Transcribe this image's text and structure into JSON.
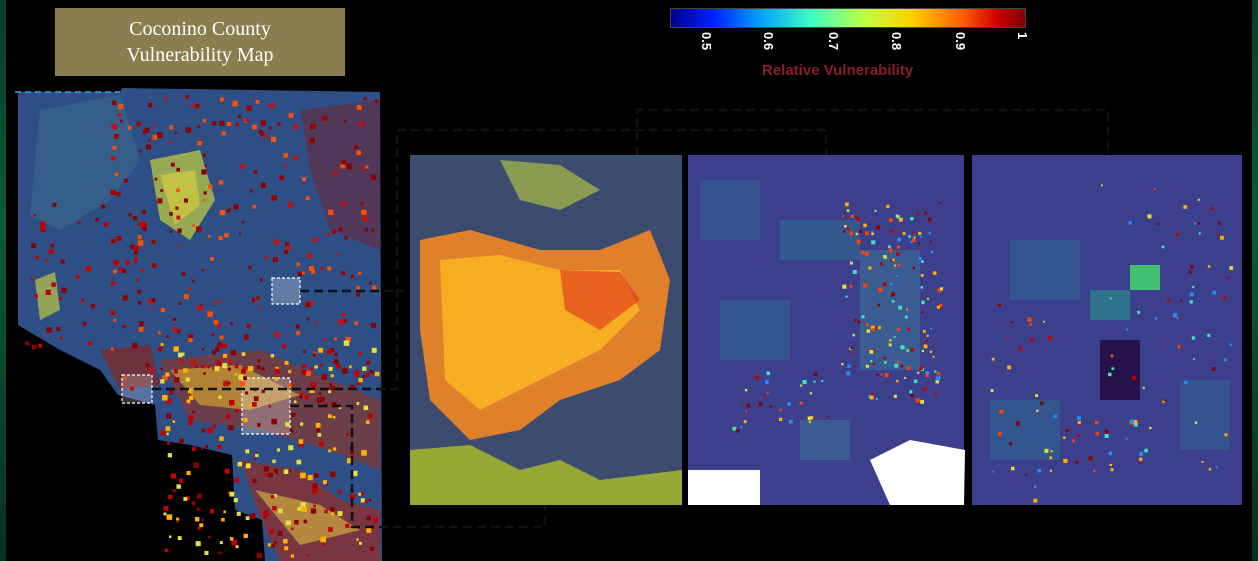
{
  "title": {
    "line1": "Coconino County",
    "line2": "Vulnerability Map"
  },
  "legend": {
    "label": "Relative Vulnerability",
    "ticks": [
      "0.5",
      "0.6",
      "0.7",
      "0.8",
      "0.9",
      "1"
    ],
    "colors": [
      "#00008f",
      "#0020ff",
      "#00a0ff",
      "#40ffc0",
      "#c0ff40",
      "#ffd000",
      "#ff6000",
      "#d00000",
      "#800000"
    ]
  },
  "panels": [
    {
      "id": "inset-1"
    },
    {
      "id": "inset-2"
    },
    {
      "id": "inset-3"
    }
  ]
}
